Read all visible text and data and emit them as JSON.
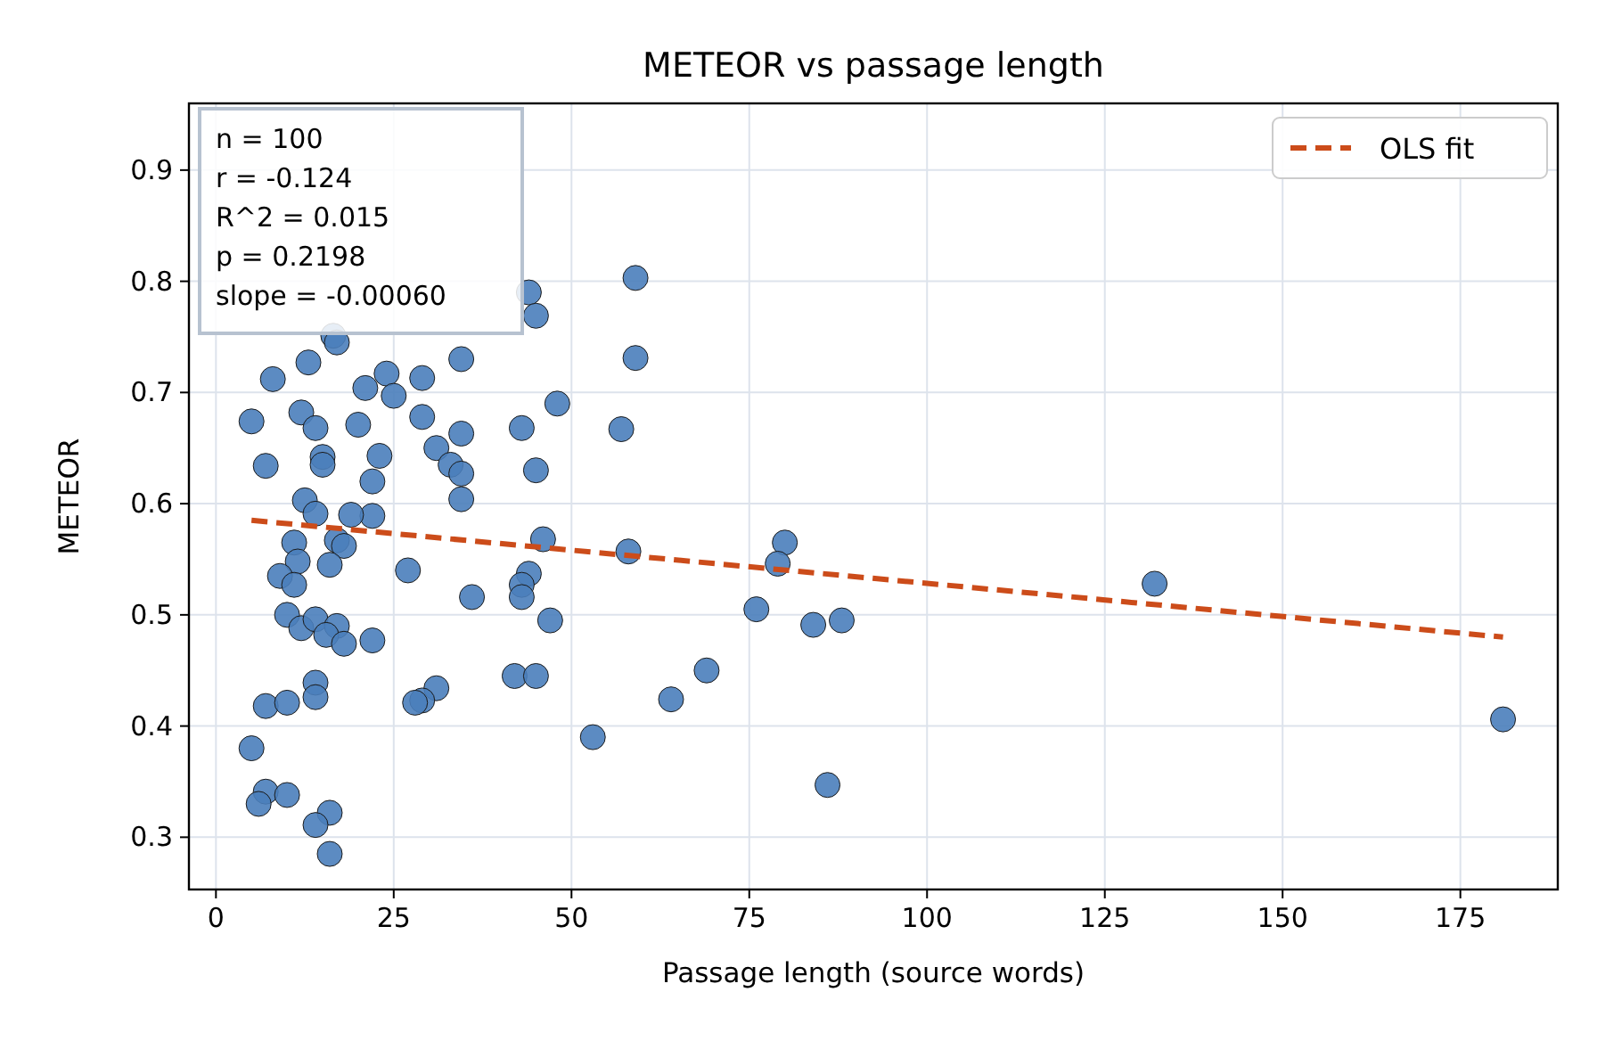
{
  "chart_data": {
    "type": "scatter",
    "title": "METEOR vs passage length",
    "xlabel": "Passage length (source words)",
    "ylabel": "METEOR",
    "xlim": [
      -3.8,
      188.7
    ],
    "ylim": [
      0.253,
      0.96
    ],
    "xticks": [
      0,
      25,
      50,
      75,
      100,
      125,
      150,
      175
    ],
    "yticks": [
      0.3,
      0.4,
      0.5,
      0.6,
      0.7,
      0.8,
      0.9
    ],
    "grid": true,
    "legend": "top right",
    "annotations": [
      "n = 100\nr = -0.124\nR^2 = 0.015\np = 0.2198\nslope = -0.00060"
    ],
    "series": [
      {
        "color": "#4a7ebb",
        "marker": "circle",
        "x": [
          16.5,
          17,
          13,
          8,
          24,
          21,
          25,
          29,
          34.5,
          5,
          12,
          14,
          20,
          29,
          34.5,
          43,
          7,
          15,
          15,
          23,
          22,
          31,
          33,
          34.5,
          45,
          59,
          44,
          45,
          59,
          48,
          57,
          34.5,
          22,
          46,
          58,
          80,
          79,
          27,
          36,
          44,
          43,
          43,
          47,
          76,
          84,
          88,
          22,
          42,
          45,
          31,
          29,
          28,
          69,
          64,
          53,
          86,
          132,
          181,
          12.5,
          14,
          19,
          11,
          17,
          18,
          11.5,
          9,
          11,
          16,
          10,
          12,
          14,
          17,
          15.5,
          18,
          14,
          14,
          7,
          10,
          5,
          7,
          6,
          10,
          16,
          14,
          16
        ],
        "values": [
          0.751,
          0.745,
          0.727,
          0.712,
          0.717,
          0.704,
          0.697,
          0.713,
          0.73,
          0.674,
          0.682,
          0.668,
          0.671,
          0.678,
          0.663,
          0.668,
          0.634,
          0.642,
          0.635,
          0.643,
          0.62,
          0.65,
          0.635,
          0.627,
          0.63,
          0.803,
          0.79,
          0.769,
          0.731,
          0.69,
          0.667,
          0.604,
          0.589,
          0.568,
          0.557,
          0.565,
          0.546,
          0.54,
          0.516,
          0.537,
          0.527,
          0.516,
          0.495,
          0.505,
          0.491,
          0.495,
          0.477,
          0.445,
          0.445,
          0.434,
          0.423,
          0.421,
          0.45,
          0.424,
          0.39,
          0.347,
          0.528,
          0.406,
          0.603,
          0.591,
          0.59,
          0.565,
          0.567,
          0.562,
          0.548,
          0.535,
          0.527,
          0.545,
          0.5,
          0.488,
          0.496,
          0.49,
          0.482,
          0.474,
          0.439,
          0.426,
          0.418,
          0.421,
          0.38,
          0.341,
          0.33,
          0.338,
          0.322,
          0.311,
          0.285
        ]
      },
      {
        "type": "line",
        "name": "OLS fit",
        "color": "#cc4c1a",
        "line_style": "dashed",
        "marker": "none",
        "x": [
          5,
          181
        ],
        "values": [
          0.585,
          0.48
        ]
      }
    ]
  }
}
